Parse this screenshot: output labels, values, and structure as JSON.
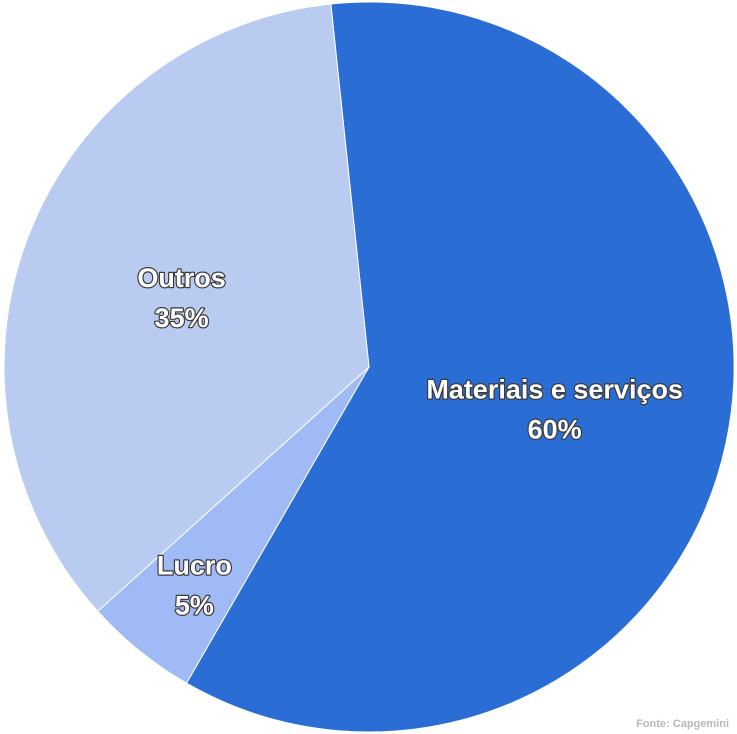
{
  "chart_data": {
    "type": "pie",
    "title": "",
    "slices": [
      {
        "label": "Materiais e serviços",
        "value": 60,
        "display": "60%",
        "color": "#2a6dd5"
      },
      {
        "label": "Lucro",
        "value": 5,
        "display": "5%",
        "color": "#9fbaf5"
      },
      {
        "label": "Outros",
        "value": 35,
        "display": "35%",
        "color": "#bacbf2"
      }
    ],
    "start_angle_deg": -6,
    "direction": "clockwise"
  },
  "source": "Fonte: Capgemini"
}
